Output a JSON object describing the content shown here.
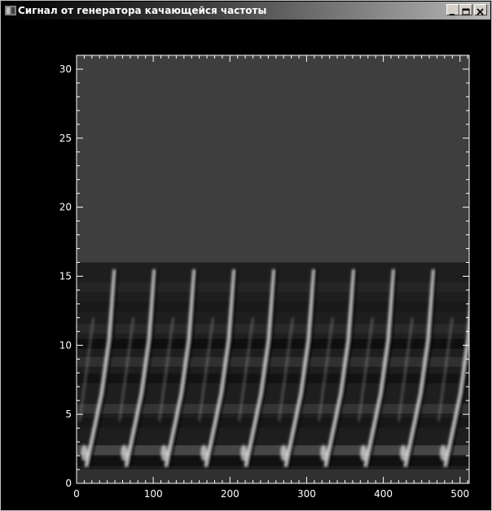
{
  "window": {
    "title": "Сигнал от генератора качающейся частоты",
    "icon": "app-icon",
    "controls": [
      "minimize-icon",
      "maximize-icon",
      "close-icon"
    ]
  },
  "chart_data": {
    "type": "heatmap",
    "title": "",
    "xlabel": "",
    "ylabel": "",
    "xlim": [
      0,
      512
    ],
    "ylim": [
      0,
      31
    ],
    "x_ticks": [
      0,
      100,
      200,
      300,
      400,
      500
    ],
    "y_ticks": [
      0,
      5,
      10,
      15,
      20,
      25,
      30
    ],
    "colormap": "grayscale",
    "background_color": "#3e3e3e",
    "signal_band": [
      1,
      16
    ],
    "sweep_period": 52,
    "sweep_count": 10,
    "frame_color": "#ffffff",
    "bright_color": "#f0f0f0",
    "dark_color": "#0a0a0a"
  }
}
